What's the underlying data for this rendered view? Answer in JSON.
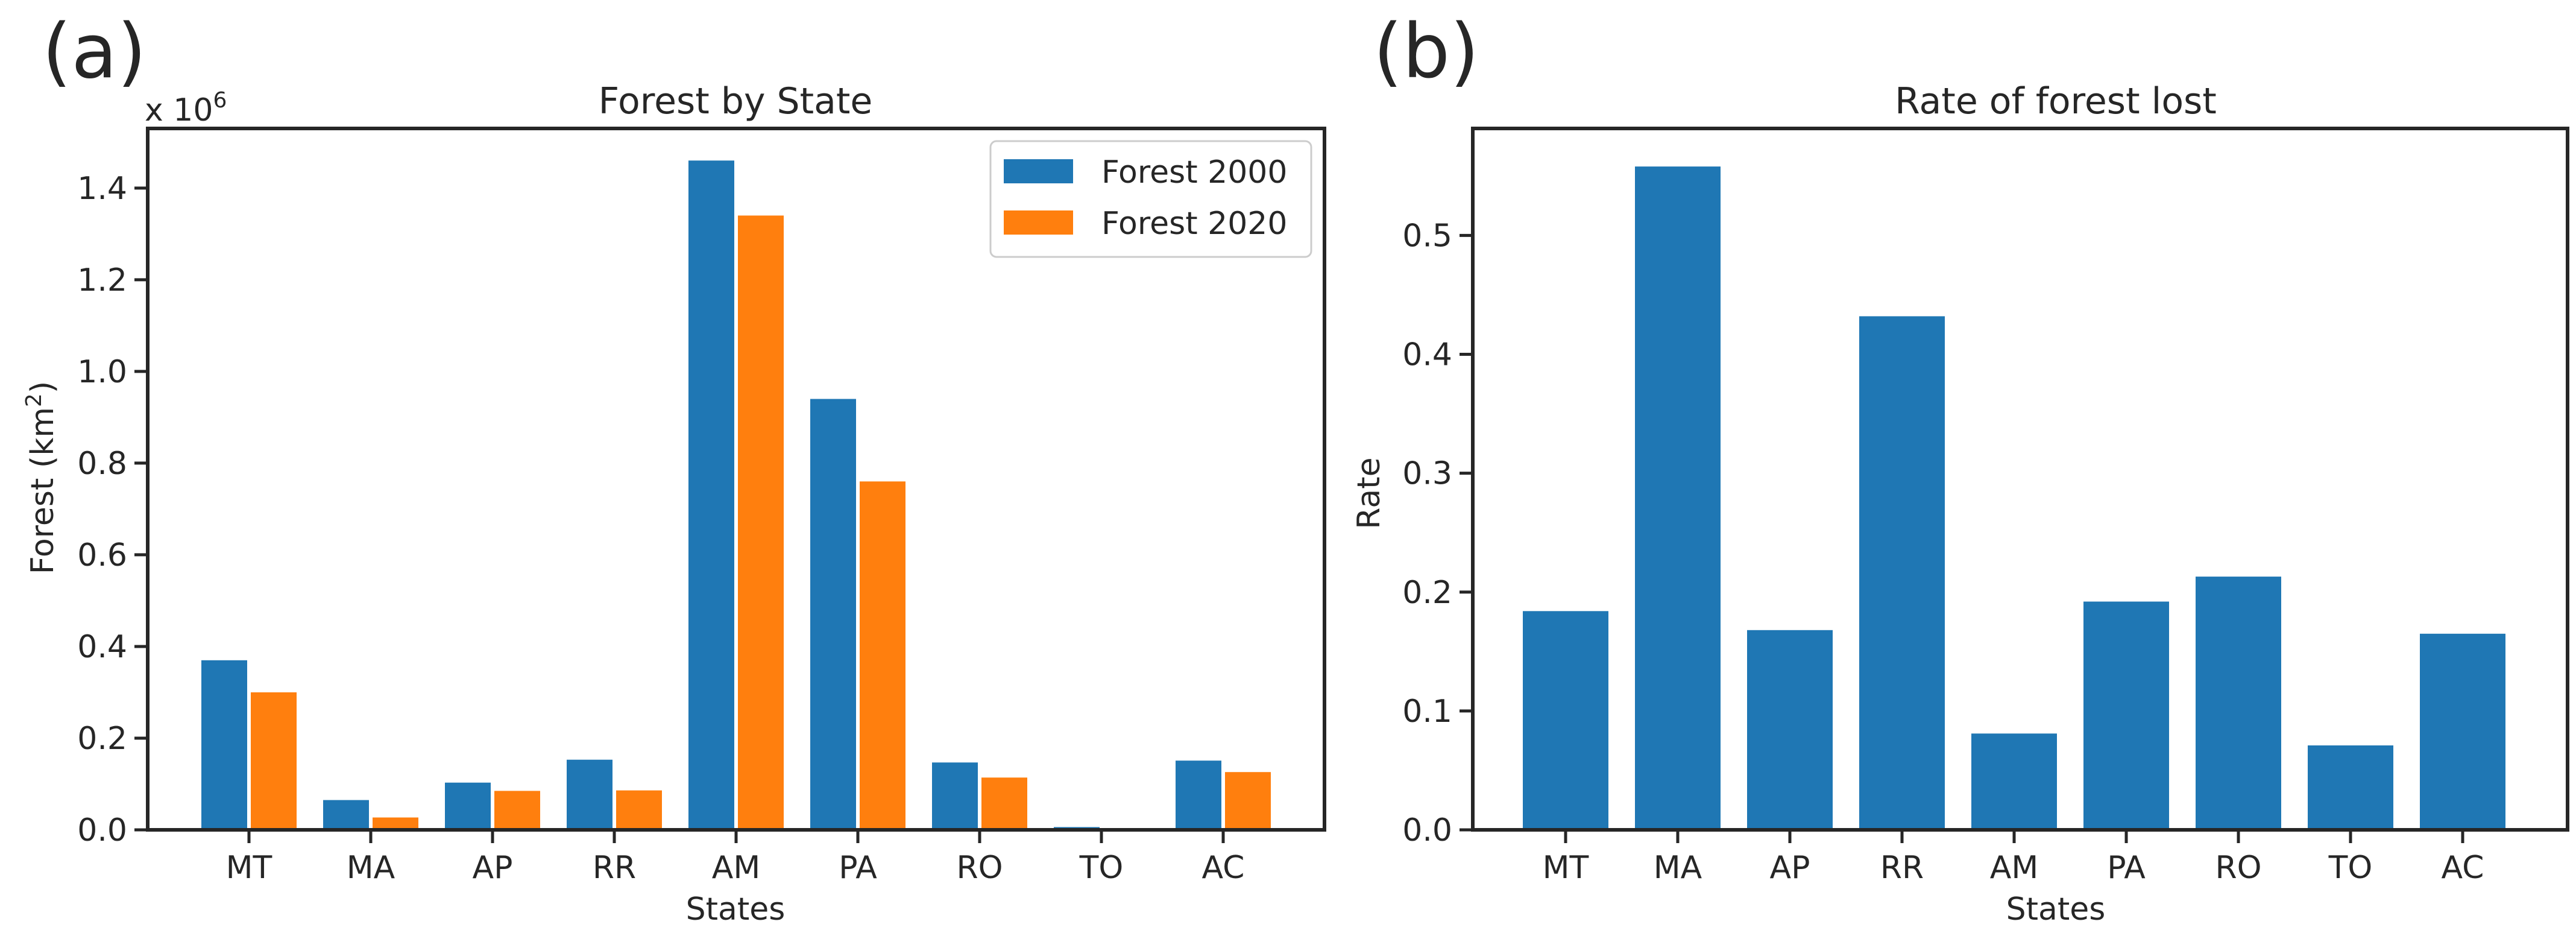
{
  "panels": {
    "a": {
      "label": "(a)"
    },
    "b": {
      "label": "(b)"
    }
  },
  "chart_data": [
    {
      "type": "bar",
      "title": "Forest by State",
      "xlabel": "States",
      "ylabel_main": "Forest (km",
      "ylabel_sup": "2",
      "ylabel_end": ")",
      "offset_text": "x 10",
      "offset_exp": "6",
      "categories": [
        "MT",
        "MA",
        "AP",
        "RR",
        "AM",
        "PA",
        "RO",
        "TO",
        "AC"
      ],
      "series": [
        {
          "name": "Forest 2000",
          "color": "#1f77b4",
          "values": [
            0.37,
            0.065,
            0.103,
            0.153,
            1.46,
            0.94,
            0.147,
            0.006,
            0.151
          ]
        },
        {
          "name": "Forest 2020",
          "color": "#ff7f0e",
          "values": [
            0.3,
            0.027,
            0.085,
            0.086,
            1.34,
            0.76,
            0.114,
            0.004,
            0.126
          ]
        }
      ],
      "ylim": [
        0,
        1.53
      ],
      "yticks": [
        0.0,
        0.2,
        0.4,
        0.6,
        0.8,
        1.0,
        1.2,
        1.4
      ],
      "ytick_labels": [
        "0.0",
        "0.2",
        "0.4",
        "0.6",
        "0.8",
        "1.0",
        "1.2",
        "1.4"
      ],
      "legend_position": "top-right",
      "grid": false
    },
    {
      "type": "bar",
      "title": "Rate of forest lost",
      "xlabel": "States",
      "ylabel": "Rate",
      "categories": [
        "MT",
        "MA",
        "AP",
        "RR",
        "AM",
        "PA",
        "RO",
        "TO",
        "AC"
      ],
      "series": [
        {
          "name": "Rate",
          "color": "#1f77b4",
          "values": [
            0.184,
            0.558,
            0.168,
            0.432,
            0.081,
            0.192,
            0.213,
            0.071,
            0.165
          ]
        }
      ],
      "ylim": [
        0,
        0.59
      ],
      "yticks": [
        0.0,
        0.1,
        0.2,
        0.3,
        0.4,
        0.5
      ],
      "ytick_labels": [
        "0.0",
        "0.1",
        "0.2",
        "0.3",
        "0.4",
        "0.5"
      ],
      "grid": false
    }
  ]
}
